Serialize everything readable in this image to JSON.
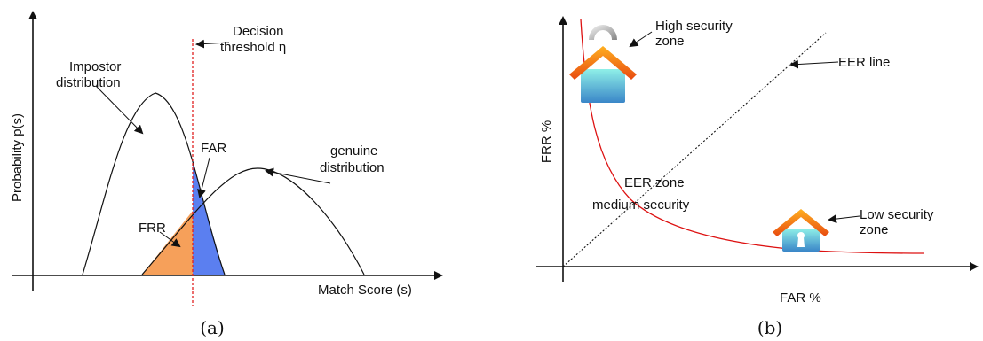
{
  "panel_a": {
    "y_axis_label": "Probability p(s)",
    "x_axis_label": "Match Score (s)",
    "threshold_label_line1": "Decision",
    "threshold_label_line2": "threshold η",
    "impostor_label_line1": "Impostor",
    "impostor_label_line2": "distribution",
    "genuine_label_line1": "genuine",
    "genuine_label_line2": "distribution",
    "far_label": "FAR",
    "frr_label": "FRR",
    "caption": "(a)"
  },
  "panel_b": {
    "y_axis_label": "FRR %",
    "x_axis_label": "FAR %",
    "high_zone_line1": "High security",
    "high_zone_line2": "zone",
    "eer_line_label": "EER line",
    "eer_zone_line1": "EER zone",
    "eer_zone_line2": "medium security",
    "low_zone_line1": "Low security",
    "low_zone_line2": "zone",
    "caption": "(b)"
  },
  "colors": {
    "far_fill": "#5b7ff0",
    "frr_fill": "#f6a05a",
    "threshold": "#e02020",
    "roc_curve": "#dd1111"
  }
}
